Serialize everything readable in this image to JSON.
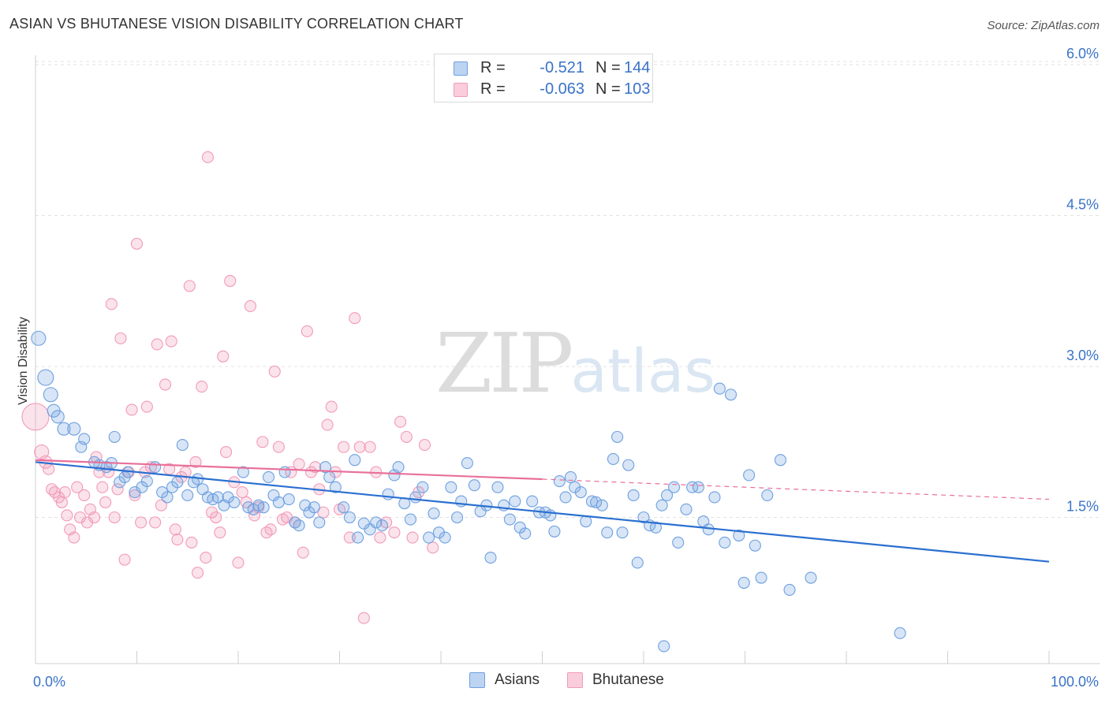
{
  "title": "ASIAN VS BHUTANESE VISION DISABILITY CORRELATION CHART",
  "source": "Source: ZipAtlas.com",
  "watermark": {
    "left": "ZIP",
    "right": "atlas"
  },
  "legend": [
    {
      "r_label": "R =",
      "r_value": "-0.521",
      "n_label": "N =",
      "n_value": "144"
    },
    {
      "r_label": "R =",
      "r_value": "-0.063",
      "n_label": "N =",
      "n_value": "103"
    }
  ],
  "chart_data": {
    "type": "scatter",
    "title": "ASIAN VS BHUTANESE VISION DISABILITY CORRELATION CHART",
    "xlabel": "",
    "ylabel": "Vision Disability",
    "xlim": [
      0,
      100
    ],
    "ylim": [
      0,
      6.2
    ],
    "x_tick_labels": [
      "0.0%",
      "100.0%"
    ],
    "y_ticks": [
      1.5,
      3.0,
      4.5,
      6.0
    ],
    "y_tick_labels": [
      "1.5%",
      "3.0%",
      "4.5%",
      "6.0%"
    ],
    "grid": "horizontal dashed",
    "legend_position": "top-center",
    "colors": {
      "asians": "#6fa0e0",
      "asians_line": "#2a6fd0",
      "bhutanese": "#f29ab8",
      "bhutanese_line": "#e8709a",
      "tick_label": "#3a73c8"
    },
    "series": [
      {
        "name": "Asians",
        "r": -0.521,
        "n": 144,
        "trend": {
          "x": [
            0,
            100
          ],
          "y": [
            2.05,
            1.06
          ]
        },
        "points": [
          [
            0.3,
            3.28,
            18
          ],
          [
            1.0,
            2.89,
            20
          ],
          [
            1.5,
            2.72,
            18
          ],
          [
            1.8,
            2.56,
            16
          ],
          [
            2.2,
            2.5,
            16
          ],
          [
            2.8,
            2.38,
            16
          ],
          [
            3.8,
            2.38,
            16
          ],
          [
            4.5,
            2.2,
            14
          ],
          [
            4.8,
            2.28,
            14
          ],
          [
            5.8,
            2.05,
            14
          ],
          [
            6.3,
            2.02,
            14
          ],
          [
            7.0,
            2.0,
            14
          ],
          [
            7.5,
            2.04,
            14
          ],
          [
            7.8,
            2.3,
            14
          ],
          [
            8.3,
            1.85,
            14
          ],
          [
            8.8,
            1.9,
            14
          ],
          [
            9.1,
            1.95,
            14
          ],
          [
            9.8,
            1.75,
            14
          ],
          [
            10.5,
            1.8,
            14
          ],
          [
            11.0,
            1.86,
            14
          ],
          [
            11.8,
            2.0,
            14
          ],
          [
            12.5,
            1.75,
            14
          ],
          [
            13.0,
            1.7,
            14
          ],
          [
            13.5,
            1.8,
            14
          ],
          [
            14.0,
            1.85,
            14
          ],
          [
            14.5,
            2.22,
            14
          ],
          [
            15.0,
            1.72,
            14
          ],
          [
            15.6,
            1.85,
            14
          ],
          [
            16.0,
            1.88,
            14
          ],
          [
            16.5,
            1.78,
            14
          ],
          [
            17.0,
            1.7,
            14
          ],
          [
            17.5,
            1.68,
            14
          ],
          [
            18.0,
            1.7,
            14
          ],
          [
            18.6,
            1.62,
            14
          ],
          [
            19.0,
            1.7,
            14
          ],
          [
            19.6,
            1.65,
            14
          ],
          [
            20.5,
            1.95,
            14
          ],
          [
            21.0,
            1.6,
            14
          ],
          [
            21.5,
            1.58,
            14
          ],
          [
            22.0,
            1.62,
            14
          ],
          [
            22.5,
            1.6,
            14
          ],
          [
            23.0,
            1.9,
            14
          ],
          [
            23.5,
            1.72,
            14
          ],
          [
            24.0,
            1.65,
            14
          ],
          [
            24.6,
            1.95,
            14
          ],
          [
            25.0,
            1.68,
            14
          ],
          [
            25.6,
            1.45,
            14
          ],
          [
            26.0,
            1.42,
            14
          ],
          [
            26.6,
            1.62,
            14
          ],
          [
            27.0,
            1.55,
            14
          ],
          [
            27.5,
            1.6,
            14
          ],
          [
            28.0,
            1.45,
            14
          ],
          [
            28.6,
            2.0,
            14
          ],
          [
            29.0,
            1.9,
            14
          ],
          [
            29.6,
            1.8,
            14
          ],
          [
            30.4,
            1.6,
            14
          ],
          [
            31.0,
            1.5,
            14
          ],
          [
            31.5,
            2.07,
            14
          ],
          [
            31.8,
            1.3,
            14
          ],
          [
            32.4,
            1.44,
            14
          ],
          [
            33.0,
            1.38,
            14
          ],
          [
            33.6,
            1.45,
            14
          ],
          [
            34.2,
            1.42,
            14
          ],
          [
            34.8,
            1.73,
            14
          ],
          [
            35.4,
            1.92,
            14
          ],
          [
            35.8,
            2.0,
            14
          ],
          [
            36.4,
            1.64,
            14
          ],
          [
            37.0,
            1.48,
            14
          ],
          [
            37.5,
            1.7,
            14
          ],
          [
            38.2,
            1.8,
            14
          ],
          [
            38.8,
            1.3,
            14
          ],
          [
            39.3,
            1.54,
            14
          ],
          [
            39.8,
            1.35,
            14
          ],
          [
            40.4,
            1.3,
            14
          ],
          [
            41.0,
            1.8,
            14
          ],
          [
            41.6,
            1.5,
            14
          ],
          [
            42.0,
            1.66,
            14
          ],
          [
            42.6,
            2.04,
            14
          ],
          [
            43.3,
            1.82,
            14
          ],
          [
            43.9,
            1.56,
            14
          ],
          [
            44.5,
            1.62,
            14
          ],
          [
            44.9,
            1.1,
            14
          ],
          [
            45.6,
            1.8,
            14
          ],
          [
            46.2,
            1.62,
            14
          ],
          [
            46.8,
            1.48,
            14
          ],
          [
            47.3,
            1.66,
            14
          ],
          [
            47.8,
            1.4,
            14
          ],
          [
            48.3,
            1.34,
            14
          ],
          [
            49.0,
            1.66,
            14
          ],
          [
            49.7,
            1.55,
            14
          ],
          [
            50.3,
            1.55,
            14
          ],
          [
            50.8,
            1.52,
            14
          ],
          [
            51.2,
            1.36,
            14
          ],
          [
            51.7,
            1.86,
            14
          ],
          [
            52.3,
            1.7,
            14
          ],
          [
            52.8,
            1.9,
            14
          ],
          [
            53.2,
            1.8,
            14
          ],
          [
            53.8,
            1.75,
            14
          ],
          [
            54.3,
            1.46,
            14
          ],
          [
            54.9,
            1.66,
            14
          ],
          [
            55.3,
            1.65,
            14
          ],
          [
            55.9,
            1.62,
            14
          ],
          [
            56.4,
            1.35,
            14
          ],
          [
            57.0,
            2.08,
            14
          ],
          [
            57.4,
            2.3,
            14
          ],
          [
            57.9,
            1.35,
            14
          ],
          [
            58.5,
            2.02,
            14
          ],
          [
            59.0,
            1.72,
            14
          ],
          [
            59.4,
            1.05,
            14
          ],
          [
            60.0,
            1.5,
            14
          ],
          [
            60.6,
            1.42,
            14
          ],
          [
            61.2,
            1.4,
            14
          ],
          [
            61.8,
            1.62,
            14
          ],
          [
            62.3,
            1.72,
            14
          ],
          [
            63.0,
            1.8,
            14
          ],
          [
            63.4,
            1.25,
            14
          ],
          [
            64.2,
            1.58,
            14
          ],
          [
            64.8,
            1.8,
            14
          ],
          [
            65.4,
            1.8,
            14
          ],
          [
            65.9,
            1.46,
            14
          ],
          [
            66.4,
            1.38,
            14
          ],
          [
            67.0,
            1.7,
            14
          ],
          [
            67.5,
            2.78,
            14
          ],
          [
            68.0,
            1.25,
            14
          ],
          [
            68.6,
            2.72,
            14
          ],
          [
            69.4,
            1.32,
            14
          ],
          [
            69.9,
            0.85,
            14
          ],
          [
            70.4,
            1.92,
            14
          ],
          [
            71.0,
            1.22,
            14
          ],
          [
            71.6,
            0.9,
            14
          ],
          [
            72.2,
            1.72,
            14
          ],
          [
            73.5,
            2.07,
            14
          ],
          [
            74.4,
            0.78,
            14
          ],
          [
            76.5,
            0.9,
            14
          ],
          [
            85.3,
            0.35,
            14
          ],
          [
            62.0,
            0.22,
            14
          ]
        ]
      },
      {
        "name": "Bhutanese",
        "r": -0.063,
        "n": 103,
        "trend_solid": {
          "x": [
            0,
            50
          ],
          "y": [
            2.07,
            1.88
          ]
        },
        "trend_dashed": {
          "x": [
            50,
            100
          ],
          "y": [
            1.88,
            1.68
          ]
        },
        "points": [
          [
            0.0,
            2.5,
            34
          ],
          [
            0.6,
            2.15,
            18
          ],
          [
            1.0,
            2.05,
            16
          ],
          [
            1.3,
            1.98,
            14
          ],
          [
            1.6,
            1.78,
            14
          ],
          [
            1.9,
            1.75,
            14
          ],
          [
            2.3,
            1.7,
            14
          ],
          [
            2.6,
            1.65,
            14
          ],
          [
            2.9,
            1.75,
            14
          ],
          [
            3.1,
            1.52,
            14
          ],
          [
            3.4,
            1.38,
            14
          ],
          [
            3.8,
            1.3,
            14
          ],
          [
            4.1,
            1.8,
            14
          ],
          [
            4.4,
            1.5,
            14
          ],
          [
            4.8,
            1.72,
            14
          ],
          [
            5.1,
            1.45,
            14
          ],
          [
            5.4,
            1.58,
            14
          ],
          [
            5.8,
            1.5,
            14
          ],
          [
            6.0,
            2.1,
            14
          ],
          [
            6.3,
            1.95,
            14
          ],
          [
            6.6,
            1.8,
            14
          ],
          [
            6.9,
            1.65,
            14
          ],
          [
            7.2,
            1.95,
            14
          ],
          [
            7.5,
            3.62,
            14
          ],
          [
            7.8,
            1.5,
            14
          ],
          [
            8.1,
            1.78,
            14
          ],
          [
            8.4,
            3.28,
            14
          ],
          [
            8.8,
            1.08,
            14
          ],
          [
            9.2,
            1.95,
            14
          ],
          [
            9.5,
            2.57,
            14
          ],
          [
            9.8,
            1.72,
            14
          ],
          [
            10.0,
            4.22,
            14
          ],
          [
            10.4,
            1.45,
            14
          ],
          [
            10.8,
            1.95,
            14
          ],
          [
            11.0,
            2.6,
            14
          ],
          [
            11.4,
            2.0,
            14
          ],
          [
            11.8,
            1.45,
            14
          ],
          [
            12.0,
            3.22,
            14
          ],
          [
            12.4,
            1.62,
            14
          ],
          [
            12.8,
            2.82,
            14
          ],
          [
            13.2,
            1.98,
            14
          ],
          [
            13.4,
            3.25,
            14
          ],
          [
            13.8,
            1.38,
            14
          ],
          [
            14.0,
            1.28,
            14
          ],
          [
            14.4,
            1.9,
            14
          ],
          [
            14.8,
            1.95,
            14
          ],
          [
            15.2,
            3.8,
            14
          ],
          [
            15.4,
            1.25,
            14
          ],
          [
            15.8,
            2.05,
            14
          ],
          [
            16.0,
            0.95,
            14
          ],
          [
            16.4,
            2.8,
            14
          ],
          [
            16.8,
            1.1,
            14
          ],
          [
            17.0,
            5.08,
            14
          ],
          [
            17.4,
            1.55,
            14
          ],
          [
            17.8,
            1.5,
            14
          ],
          [
            18.2,
            1.35,
            14
          ],
          [
            18.5,
            3.1,
            14
          ],
          [
            18.8,
            2.15,
            14
          ],
          [
            19.2,
            3.85,
            14
          ],
          [
            19.6,
            1.85,
            14
          ],
          [
            20.0,
            1.05,
            14
          ],
          [
            20.4,
            1.75,
            14
          ],
          [
            20.8,
            1.65,
            14
          ],
          [
            21.2,
            3.6,
            14
          ],
          [
            21.6,
            1.52,
            14
          ],
          [
            22.0,
            1.6,
            14
          ],
          [
            22.4,
            2.25,
            14
          ],
          [
            22.8,
            1.35,
            14
          ],
          [
            23.2,
            1.38,
            14
          ],
          [
            23.6,
            2.95,
            14
          ],
          [
            24.0,
            2.2,
            14
          ],
          [
            24.4,
            1.48,
            14
          ],
          [
            24.8,
            1.5,
            14
          ],
          [
            25.2,
            1.95,
            14
          ],
          [
            25.6,
            1.45,
            14
          ],
          [
            26.0,
            2.03,
            14
          ],
          [
            26.4,
            1.15,
            14
          ],
          [
            26.8,
            3.35,
            14
          ],
          [
            27.2,
            1.95,
            14
          ],
          [
            27.6,
            2.0,
            14
          ],
          [
            28.0,
            1.78,
            14
          ],
          [
            28.4,
            1.55,
            14
          ],
          [
            28.8,
            2.42,
            14
          ],
          [
            29.2,
            2.6,
            14
          ],
          [
            29.6,
            1.95,
            14
          ],
          [
            30.0,
            1.58,
            14
          ],
          [
            30.4,
            2.2,
            14
          ],
          [
            31.0,
            1.3,
            14
          ],
          [
            31.5,
            3.48,
            14
          ],
          [
            32.0,
            2.2,
            14
          ],
          [
            32.4,
            0.5,
            14
          ],
          [
            33.0,
            2.2,
            14
          ],
          [
            33.6,
            1.95,
            14
          ],
          [
            34.0,
            1.3,
            14
          ],
          [
            34.6,
            1.45,
            14
          ],
          [
            35.4,
            1.35,
            14
          ],
          [
            36.0,
            2.45,
            14
          ],
          [
            36.6,
            2.3,
            14
          ],
          [
            37.2,
            1.3,
            14
          ],
          [
            37.8,
            1.75,
            14
          ],
          [
            38.4,
            2.22,
            14
          ],
          [
            39.2,
            1.2,
            14
          ]
        ]
      }
    ]
  }
}
